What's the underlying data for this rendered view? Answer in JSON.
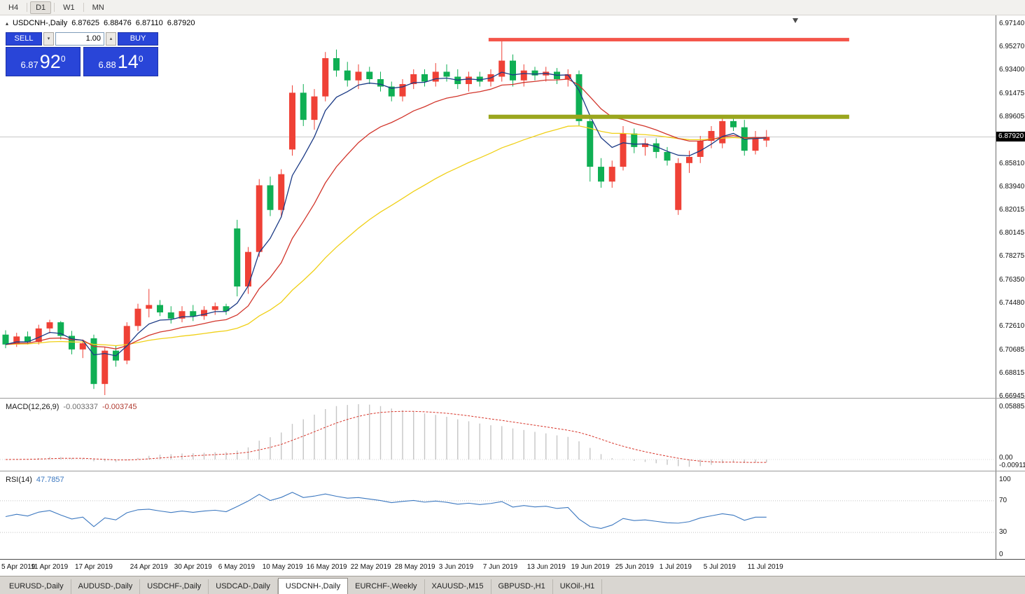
{
  "toolbar": {
    "timeframes": [
      "H4",
      "D1",
      "W1",
      "MN"
    ],
    "active": "D1"
  },
  "icons": {
    "panel_toggle": "▴",
    "spinner_up": "▴",
    "spinner_down": "▾",
    "shift_marker": "▾"
  },
  "legend": {
    "symbol": "USDCNH-,Daily",
    "open": "6.87625",
    "high": "6.88476",
    "low": "6.87110",
    "close": "6.87920"
  },
  "trade_panel": {
    "sell_label": "SELL",
    "buy_label": "BUY",
    "volume": "1.00",
    "sell_price": {
      "prefix": "6.87",
      "big": "92",
      "sup": "0"
    },
    "buy_price": {
      "prefix": "6.88",
      "big": "14",
      "sup": "0"
    }
  },
  "price_axis": {
    "ticks": [
      "6.97140",
      "6.95270",
      "6.93400",
      "6.91475",
      "6.89605",
      "6.85810",
      "6.83940",
      "6.82015",
      "6.80145",
      "6.78275",
      "6.76350",
      "6.74480",
      "6.72610",
      "6.70685",
      "6.68815",
      "6.66945"
    ],
    "current": "6.87920"
  },
  "macd_panel": {
    "label": "MACD(12,26,9)",
    "value_main": "-0.003337",
    "value_signal": "-0.003745",
    "scale_max": "0.058851",
    "scale_zero": "0.00",
    "scale_min": "-0.009116"
  },
  "rsi_panel": {
    "label": "RSI(14)",
    "value": "47.7857",
    "scale": [
      "100",
      "70",
      "30",
      "0"
    ]
  },
  "date_axis": [
    {
      "i": 0,
      "label": "5 Apr 2019"
    },
    {
      "i": 4,
      "label": "11 Apr 2019"
    },
    {
      "i": 8,
      "label": "17 Apr 2019"
    },
    {
      "i": 13,
      "label": "24 Apr 2019"
    },
    {
      "i": 17,
      "label": "30 Apr 2019"
    },
    {
      "i": 21,
      "label": "6 May 2019"
    },
    {
      "i": 25,
      "label": "10 May 2019"
    },
    {
      "i": 29,
      "label": "16 May 2019"
    },
    {
      "i": 33,
      "label": "22 May 2019"
    },
    {
      "i": 37,
      "label": "28 May 2019"
    },
    {
      "i": 41,
      "label": "3 Jun 2019"
    },
    {
      "i": 45,
      "label": "7 Jun 2019"
    },
    {
      "i": 49,
      "label": "13 Jun 2019"
    },
    {
      "i": 53,
      "label": "19 Jun 2019"
    },
    {
      "i": 57,
      "label": "25 Jun 2019"
    },
    {
      "i": 61,
      "label": "1 Jul 2019"
    },
    {
      "i": 65,
      "label": "5 Jul 2019"
    },
    {
      "i": 69,
      "label": "11 Jul 2019"
    }
  ],
  "tabs": {
    "items": [
      "EURUSD-,Daily",
      "AUDUSD-,Daily",
      "USDCHF-,Daily",
      "USDCAD-,Daily",
      "USDCNH-,Daily",
      "EURCHF-,Weekly",
      "XAUUSD-,M15",
      "GBPUSD-,H1",
      "UKOil-,H1"
    ],
    "active_index": 4
  },
  "chart_data": {
    "type": "candlestick",
    "symbol": "USDCNH",
    "timeframe": "Daily",
    "current_price": 6.8792,
    "price_range": {
      "top": 6.9714,
      "bottom": 6.66945
    },
    "colors": {
      "bull": "#ef4136",
      "bear": "#0faf54",
      "current_line": "#c8c8c8"
    },
    "candles": [
      [
        6.719,
        6.7225,
        6.708,
        6.711
      ],
      [
        6.711,
        6.7205,
        6.709,
        6.7175
      ],
      [
        6.7175,
        6.7215,
        6.711,
        6.713
      ],
      [
        6.713,
        6.727,
        6.711,
        6.724
      ],
      [
        6.724,
        6.731,
        6.72,
        6.729
      ],
      [
        6.729,
        6.73,
        6.715,
        6.718
      ],
      [
        6.718,
        6.722,
        6.703,
        6.707
      ],
      [
        6.707,
        6.715,
        6.7,
        6.712
      ],
      [
        6.716,
        6.719,
        6.675,
        6.679
      ],
      [
        6.679,
        6.709,
        6.67,
        6.706
      ],
      [
        6.706,
        6.71,
        6.693,
        6.698
      ],
      [
        6.698,
        6.729,
        6.695,
        6.726
      ],
      [
        6.726,
        6.744,
        6.722,
        6.74
      ],
      [
        6.74,
        6.756,
        6.733,
        6.743
      ],
      [
        6.743,
        6.747,
        6.734,
        6.737
      ],
      [
        6.737,
        6.742,
        6.728,
        6.732
      ],
      [
        6.732,
        6.742,
        6.729,
        6.738
      ],
      [
        6.738,
        6.743,
        6.73,
        6.734
      ],
      [
        6.734,
        6.742,
        6.731,
        6.739
      ],
      [
        6.739,
        6.745,
        6.735,
        6.742
      ],
      [
        6.742,
        6.744,
        6.735,
        6.738
      ],
      [
        6.805,
        6.812,
        6.75,
        6.758
      ],
      [
        6.758,
        6.79,
        6.752,
        6.786
      ],
      [
        6.786,
        6.845,
        6.782,
        6.84
      ],
      [
        6.84,
        6.847,
        6.815,
        6.82
      ],
      [
        6.82,
        6.853,
        6.814,
        6.849
      ],
      [
        6.869,
        6.921,
        6.864,
        6.915
      ],
      [
        6.915,
        6.922,
        6.888,
        6.893
      ],
      [
        6.893,
        6.918,
        6.885,
        6.912
      ],
      [
        6.912,
        6.948,
        6.908,
        6.943
      ],
      [
        6.943,
        6.95,
        6.928,
        6.933
      ],
      [
        6.933,
        6.94,
        6.92,
        6.925
      ],
      [
        6.925,
        6.938,
        6.918,
        6.932
      ],
      [
        6.932,
        6.936,
        6.922,
        6.926
      ],
      [
        6.926,
        6.932,
        6.916,
        6.92
      ],
      [
        6.92,
        6.924,
        6.908,
        6.912
      ],
      [
        6.912,
        6.926,
        6.908,
        6.922
      ],
      [
        6.922,
        6.934,
        6.918,
        6.93
      ],
      [
        6.93,
        6.934,
        6.92,
        6.924
      ],
      [
        6.924,
        6.939,
        6.92,
        6.932
      ],
      [
        6.932,
        6.938,
        6.924,
        6.928
      ],
      [
        6.928,
        6.934,
        6.918,
        6.922
      ],
      [
        6.922,
        6.932,
        6.916,
        6.928
      ],
      [
        6.928,
        6.932,
        6.92,
        6.924
      ],
      [
        6.924,
        6.934,
        6.92,
        6.93
      ],
      [
        6.928,
        6.959,
        6.924,
        6.941
      ],
      [
        6.941,
        6.946,
        6.92,
        6.925
      ],
      [
        6.925,
        6.938,
        6.92,
        6.933
      ],
      [
        6.933,
        6.936,
        6.925,
        6.929
      ],
      [
        6.929,
        6.936,
        6.924,
        6.932
      ],
      [
        6.932,
        6.935,
        6.922,
        6.926
      ],
      [
        6.926,
        6.934,
        6.92,
        6.93
      ],
      [
        6.93,
        6.933,
        6.888,
        6.892
      ],
      [
        6.892,
        6.896,
        6.843,
        6.855
      ],
      [
        6.855,
        6.862,
        6.838,
        6.843
      ],
      [
        6.843,
        6.86,
        6.838,
        6.855
      ],
      [
        6.855,
        6.888,
        6.852,
        6.882
      ],
      [
        6.882,
        6.886,
        6.866,
        6.871
      ],
      [
        6.871,
        6.878,
        6.864,
        6.874
      ],
      [
        6.874,
        6.878,
        6.862,
        6.867
      ],
      [
        6.867,
        6.871,
        6.856,
        6.86
      ],
      [
        6.82,
        6.862,
        6.816,
        6.858
      ],
      [
        6.858,
        6.868,
        6.85,
        6.863
      ],
      [
        6.863,
        6.88,
        6.858,
        6.876
      ],
      [
        6.876,
        6.888,
        6.87,
        6.884
      ],
      [
        6.874,
        6.895,
        6.87,
        6.892
      ],
      [
        6.892,
        6.896,
        6.884,
        6.887
      ],
      [
        6.887,
        6.893,
        6.864,
        6.868
      ],
      [
        6.868,
        6.884,
        6.865,
        6.879
      ],
      [
        6.87625,
        6.88476,
        6.8711,
        6.8792
      ]
    ],
    "moving_averages": [
      {
        "name": "slow",
        "period": 34,
        "color": "#f0d017"
      },
      {
        "name": "medium",
        "period": 13,
        "color": "#d2352b"
      },
      {
        "name": "fast",
        "period": 5,
        "color": "#1b3a85"
      }
    ],
    "levels": [
      {
        "type": "resistance",
        "price": 6.958,
        "from_index": 43.8,
        "to_index": 76.5,
        "color": "#f4554a",
        "thickness": 5
      },
      {
        "type": "support",
        "price": 6.8955,
        "from_index": 43.8,
        "to_index": 76.5,
        "color": "#9aa61d",
        "thickness": 6
      }
    ],
    "macd": {
      "fast": 12,
      "slow": 26,
      "signal": 9,
      "histogram_color": "#c6c6c6",
      "signal_color": "#d8372c"
    },
    "rsi": {
      "period": 14,
      "color": "#3c78c0",
      "levels": [
        70,
        30
      ]
    }
  }
}
